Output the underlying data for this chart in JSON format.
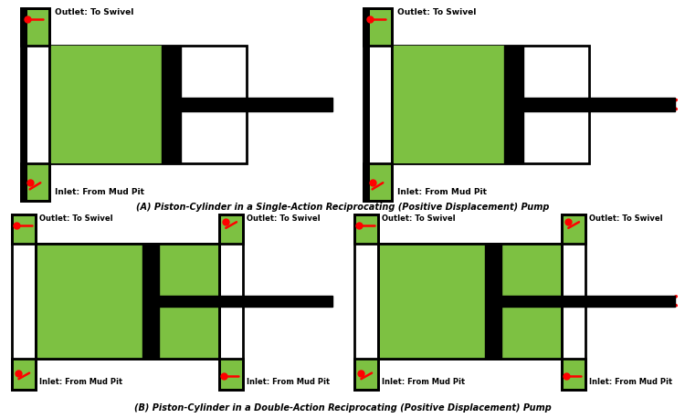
{
  "green": "#7DC142",
  "black": "#000000",
  "white": "#FFFFFF",
  "red": "#FF0000",
  "bg": "#FFFFFF",
  "title_A": "(A) Piston-Cylinder in a Single-Action Reciprocating (Positive Displacement) Pump",
  "title_B": "(B) Piston-Cylinder in a Double-Action Reciprocating (Positive Displacement) Pump",
  "label_outlet": "Outlet: To Swivel",
  "label_inlet": "Inlet: From Mud Pit",
  "fontsize": 6.5
}
